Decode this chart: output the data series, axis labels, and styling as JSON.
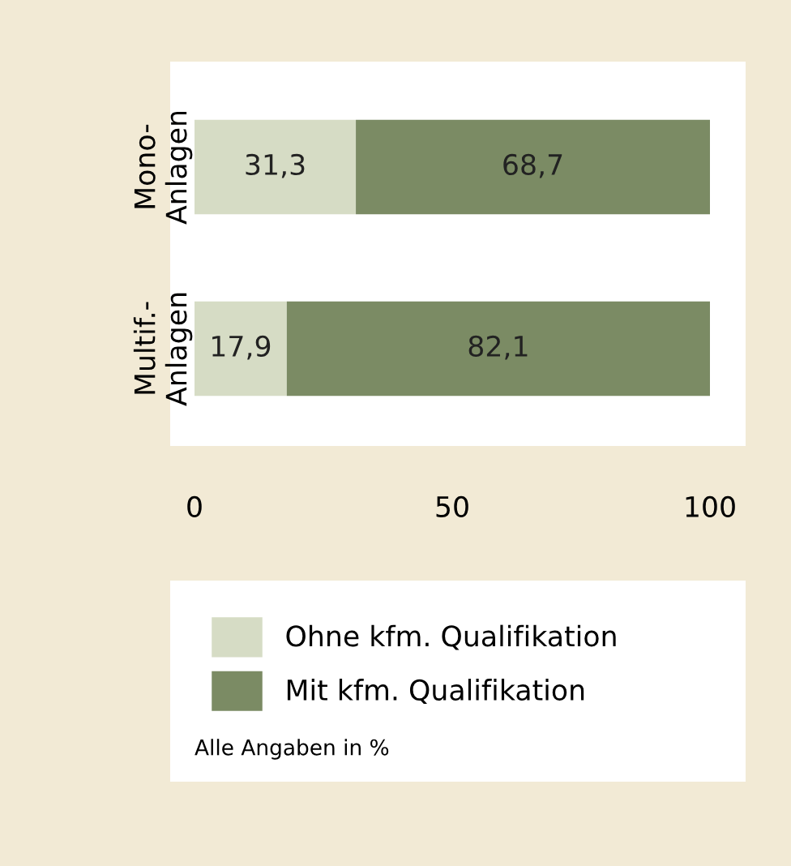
{
  "chart_data": {
    "type": "bar",
    "orientation": "horizontal",
    "stacked": true,
    "categories": [
      "Mono-\nAnlagen",
      "Multif.-\nAnlagen"
    ],
    "series": [
      {
        "name": "Ohne kfm. Qualifikation",
        "color": "#d6dcc5",
        "values": [
          31.3,
          17.9
        ]
      },
      {
        "name": "Mit kfm. Qualifikation",
        "color": "#7b8b64",
        "values": [
          68.7,
          82.1
        ]
      }
    ],
    "value_labels": [
      [
        "31,3",
        "17,9"
      ],
      [
        "68,7",
        "82,1"
      ]
    ],
    "xlim": [
      0,
      100
    ],
    "xticks": [
      0,
      50,
      100
    ],
    "grid": false,
    "legend": "bottom",
    "annotations": [
      "Alle Angaben in %"
    ]
  }
}
